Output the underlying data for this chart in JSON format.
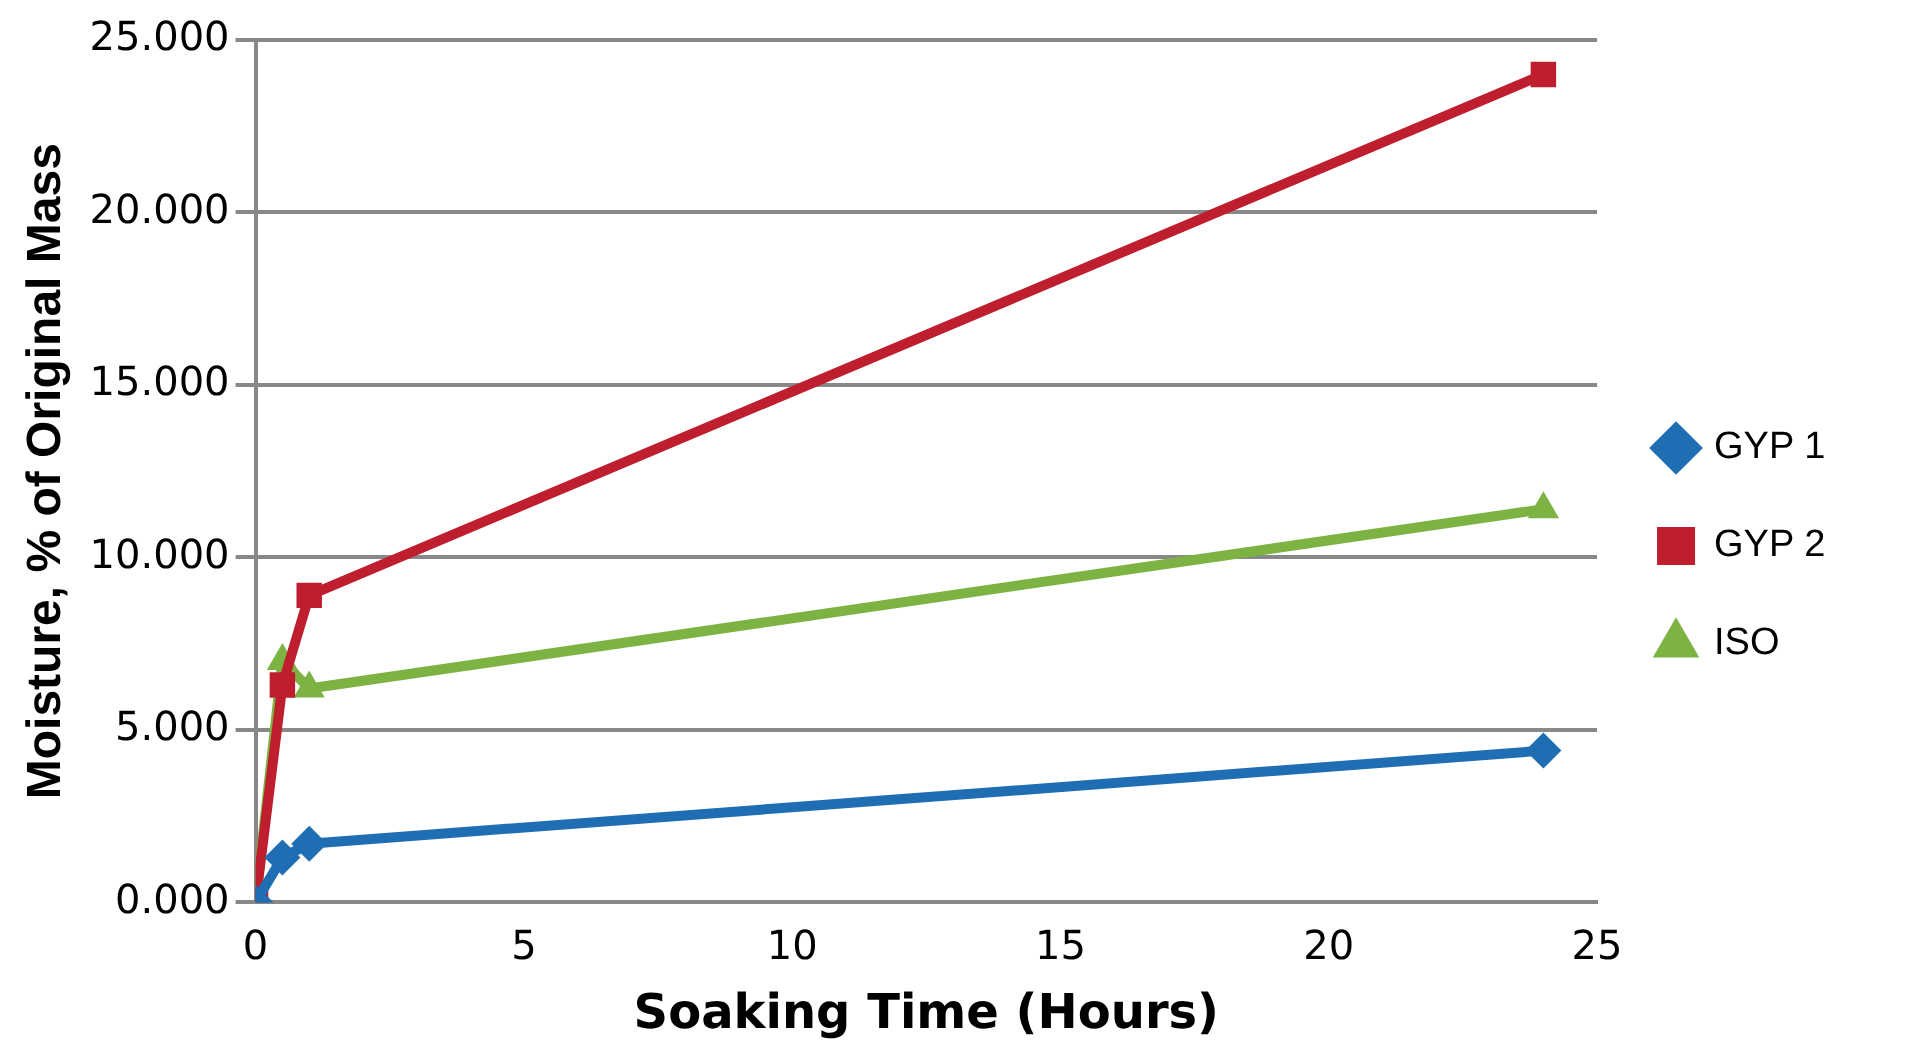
{
  "chart_data": {
    "type": "line",
    "xlabel": "Soaking Time (Hours)",
    "ylabel": "Moisture, % of Original Mass",
    "x": [
      0,
      0.5,
      1,
      24
    ],
    "series": [
      {
        "name": "GYP 1",
        "color": "#1f6eb4",
        "marker": "diamond",
        "values": [
          0,
          1.3,
          1.7,
          4.4
        ]
      },
      {
        "name": "GYP 2",
        "color": "#be1e2d",
        "marker": "square",
        "values": [
          0,
          6.3,
          8.9,
          24.0
        ]
      },
      {
        "name": "ISO",
        "color": "#7cb342",
        "marker": "triangle",
        "values": [
          0,
          7.0,
          6.2,
          11.4
        ]
      }
    ],
    "xlim": [
      0,
      25
    ],
    "xticks": [
      0,
      5,
      10,
      15,
      20,
      25
    ],
    "ylim": [
      0,
      25
    ],
    "yticks": [
      {
        "value": 0,
        "label": "0.000"
      },
      {
        "value": 5,
        "label": "5.000"
      },
      {
        "value": 10,
        "label": "10.000"
      },
      {
        "value": 15,
        "label": "15.000"
      },
      {
        "value": 20,
        "label": "20.000"
      },
      {
        "value": 25,
        "label": "25.000"
      }
    ],
    "grid": "y",
    "legend": "right"
  }
}
